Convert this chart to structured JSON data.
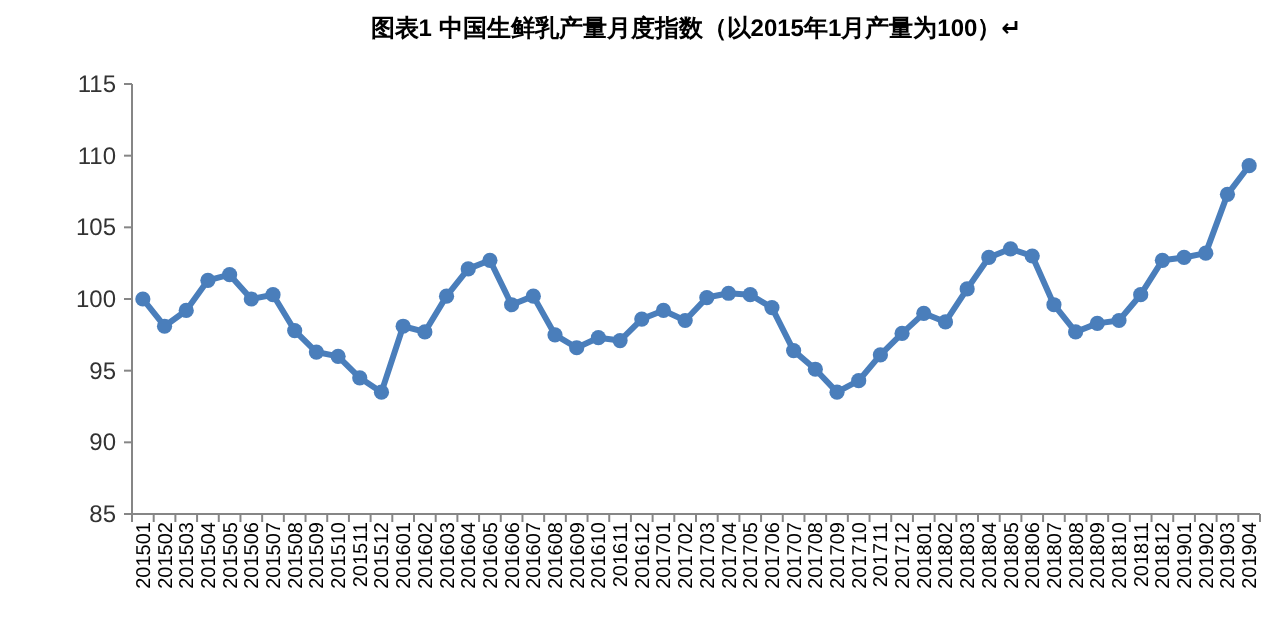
{
  "chart_data": {
    "type": "line",
    "title": "图表1 中国生鲜乳产量月度指数（以2015年1月产量为100）↵",
    "categories": [
      "201501",
      "201502",
      "201503",
      "201504",
      "201505",
      "201506",
      "201507",
      "201508",
      "201509",
      "201510",
      "201511",
      "201512",
      "201601",
      "201602",
      "201603",
      "201604",
      "201605",
      "201606",
      "201607",
      "201608",
      "201609",
      "201610",
      "201611",
      "201612",
      "201701",
      "201702",
      "201703",
      "201704",
      "201705",
      "201706",
      "201707",
      "201708",
      "201709",
      "201710",
      "201711",
      "201712",
      "201801",
      "201802",
      "201803",
      "201804",
      "201805",
      "201806",
      "201807",
      "201808",
      "201809",
      "201810",
      "201811",
      "201812",
      "201901",
      "201902",
      "201903",
      "201904"
    ],
    "series": [
      {
        "color": "#4a7ebb",
        "values": [
          100,
          98.1,
          99.2,
          101.3,
          101.7,
          100.0,
          100.3,
          97.8,
          96.3,
          96.0,
          94.5,
          93.5,
          98.1,
          97.7,
          100.2,
          102.1,
          102.7,
          99.6,
          100.2,
          97.5,
          96.6,
          97.3,
          97.1,
          98.6,
          99.2,
          98.5,
          100.1,
          100.4,
          100.3,
          99.4,
          96.4,
          95.1,
          93.5,
          94.3,
          96.1,
          97.6,
          99.0,
          98.4,
          100.7,
          102.9,
          103.5,
          103.0,
          99.6,
          97.7,
          98.3,
          98.5,
          100.3,
          102.7,
          102.9,
          103.2,
          107.3,
          109.3
        ]
      }
    ],
    "ylim": [
      85,
      115
    ],
    "yticks": [
      85,
      90,
      95,
      100,
      105,
      110,
      115
    ],
    "marker": "circle",
    "line_style": "solid"
  }
}
